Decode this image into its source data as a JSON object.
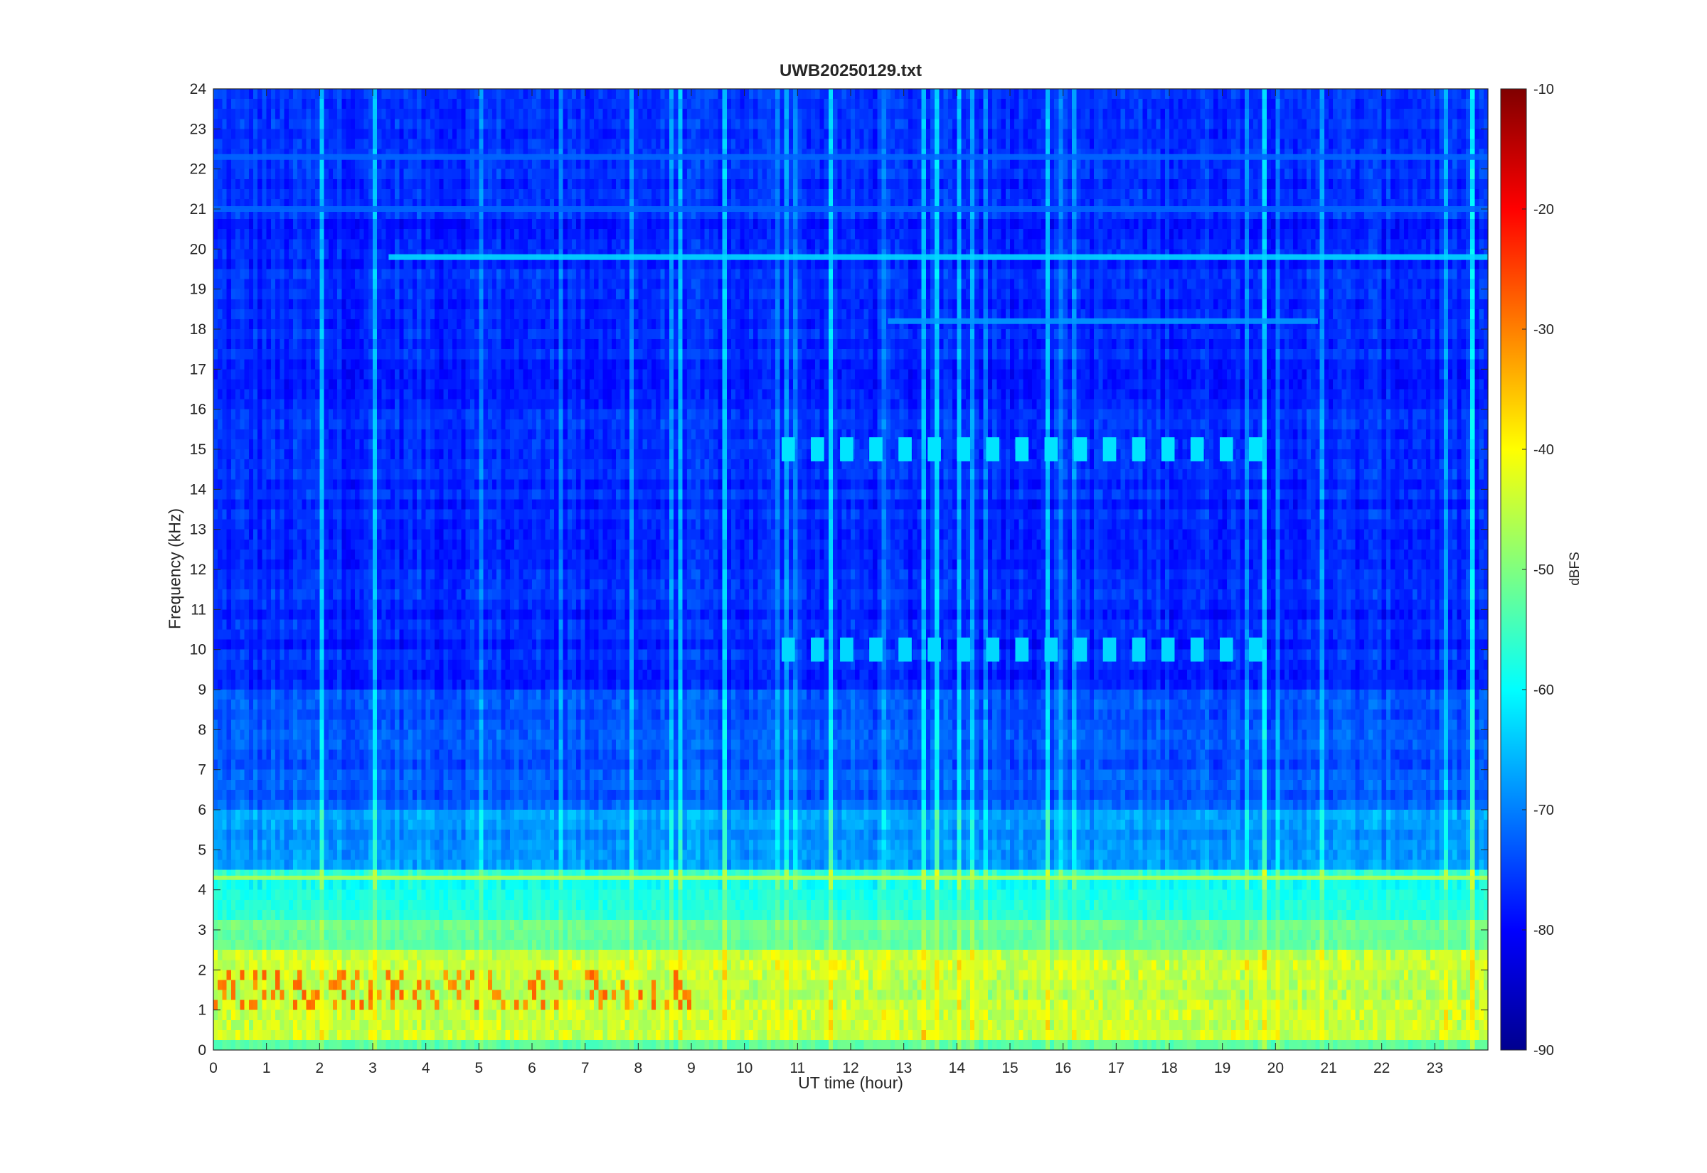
{
  "chart_data": {
    "type": "heatmap",
    "title": "UWB20250129.txt",
    "xlabel": "UT time (hour)",
    "ylabel": "Frequency (kHz)",
    "xlim": [
      0,
      24
    ],
    "ylim": [
      0,
      24
    ],
    "x_ticks": [
      "0",
      "1",
      "2",
      "3",
      "4",
      "5",
      "6",
      "7",
      "8",
      "9",
      "10",
      "11",
      "12",
      "13",
      "14",
      "15",
      "16",
      "17",
      "18",
      "19",
      "20",
      "21",
      "22",
      "23"
    ],
    "y_ticks": [
      "0",
      "1",
      "2",
      "3",
      "4",
      "5",
      "6",
      "7",
      "8",
      "9",
      "10",
      "11",
      "12",
      "13",
      "14",
      "15",
      "16",
      "17",
      "18",
      "19",
      "20",
      "21",
      "22",
      "23",
      "24"
    ],
    "colorbar": {
      "label": "dBFS",
      "limits": [
        -90,
        -10
      ],
      "ticks": [
        "-90",
        "-80",
        "-70",
        "-60",
        "-50",
        "-40",
        "-30",
        "-20",
        "-10"
      ],
      "colormap": "jet"
    },
    "colors": {
      "background_level": "#1a4de6",
      "low_band_level": "#c8f03c",
      "hot_spot_level": "#ff6a00"
    },
    "features": [
      {
        "kind": "horizontal-line",
        "freq_khz": 19.8,
        "x_start": 3.3,
        "x_end": 24,
        "level_dbfs": -63
      },
      {
        "kind": "horizontal-line",
        "freq_khz": 22.3,
        "x_start": 0,
        "x_end": 24,
        "level_dbfs": -72
      },
      {
        "kind": "horizontal-line",
        "freq_khz": 21.0,
        "x_start": 0,
        "x_end": 24,
        "level_dbfs": -72
      },
      {
        "kind": "horizontal-line",
        "freq_khz": 18.2,
        "x_start": 12.7,
        "x_end": 20.8,
        "level_dbfs": -68
      },
      {
        "kind": "pulse-train",
        "freq_khz": 15.0,
        "x_start": 10.7,
        "x_end": 19.8,
        "level_dbfs": -62
      },
      {
        "kind": "pulse-train",
        "freq_khz": 10.0,
        "x_start": 10.7,
        "x_end": 19.8,
        "level_dbfs": -63
      },
      {
        "kind": "broadband",
        "freq_range_khz": [
          0,
          4.5
        ],
        "x_start": 0,
        "x_end": 24,
        "level_dbfs": -45
      },
      {
        "kind": "hot-band",
        "freq_range_khz": [
          1.0,
          1.9
        ],
        "x_start": 0,
        "x_end": 9,
        "level_dbfs": -30
      }
    ]
  }
}
